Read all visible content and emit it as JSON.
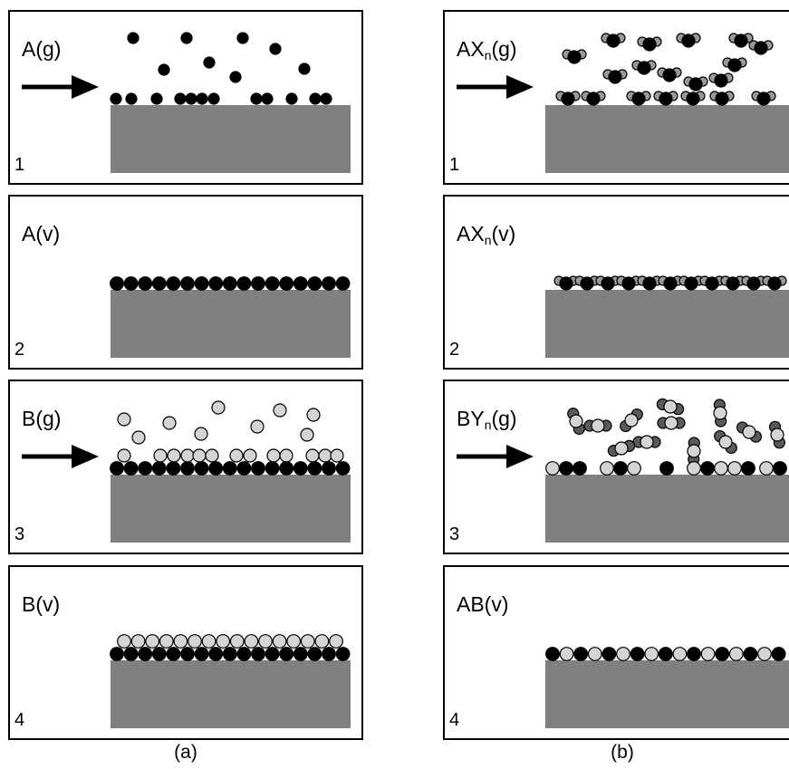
{
  "panels": {
    "a": {
      "caption": "(a)",
      "steps": [
        {
          "number": "1",
          "label": "A(g)"
        },
        {
          "number": "2",
          "label": "A(v)"
        },
        {
          "number": "3",
          "label": "B(g)"
        },
        {
          "number": "4",
          "label": "B(v)"
        }
      ]
    },
    "b": {
      "caption": "(b)",
      "steps": [
        {
          "number": "1",
          "label": [
            "AX",
            "n",
            "(g)"
          ]
        },
        {
          "number": "2",
          "label": [
            "AX",
            "n",
            "(v)"
          ]
        },
        {
          "number": "3",
          "label": [
            "BY",
            "n",
            "(g)"
          ]
        },
        {
          "number": "4",
          "label": "AB(v)"
        }
      ]
    }
  }
}
